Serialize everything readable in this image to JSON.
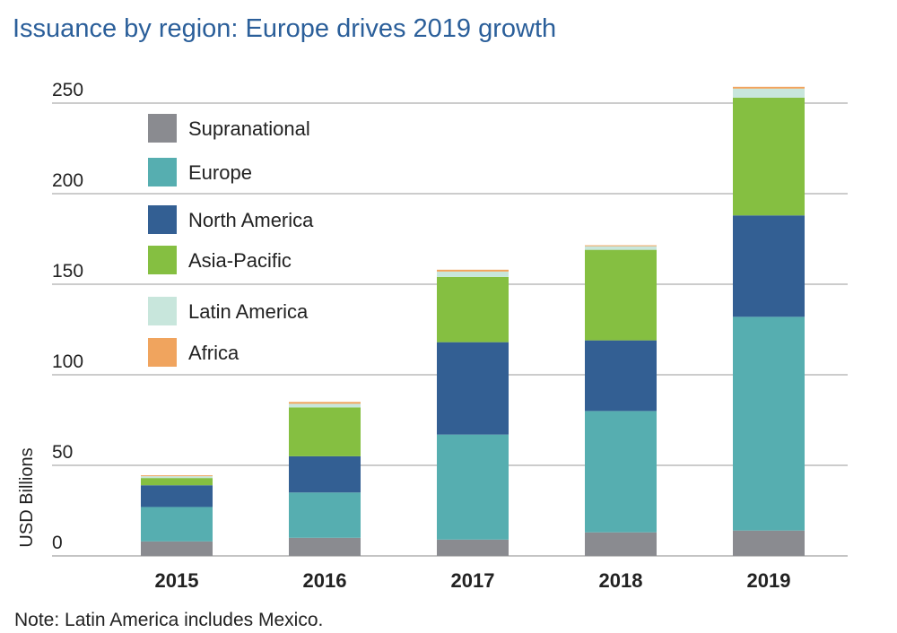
{
  "title": "Issuance by region: Europe drives 2019 growth",
  "note": "Note: Latin America includes Mexico.",
  "chart_data": {
    "type": "bar",
    "stacked": true,
    "categories": [
      "2015",
      "2016",
      "2017",
      "2018",
      "2019"
    ],
    "ylabel": "USD Billions",
    "ylim": [
      0,
      250
    ],
    "yticks": [
      0,
      50,
      100,
      150,
      200,
      250
    ],
    "grid": true,
    "legend_position": "top-left",
    "series": [
      {
        "name": "Supranational",
        "color": "#8a8b90",
        "values": [
          8,
          10,
          9,
          13,
          14
        ]
      },
      {
        "name": "Europe",
        "color": "#56aeb0",
        "values": [
          19,
          25,
          58,
          67,
          118
        ]
      },
      {
        "name": "North America",
        "color": "#335f93",
        "values": [
          12,
          20,
          51,
          39,
          56
        ]
      },
      {
        "name": "Asia-Pacific",
        "color": "#85bf41",
        "values": [
          4,
          27,
          36,
          50,
          65
        ]
      },
      {
        "name": "Latin America",
        "color": "#c8e6dc",
        "values": [
          1,
          2,
          3,
          2,
          5
        ]
      },
      {
        "name": "Africa",
        "color": "#f0a45e",
        "values": [
          0.5,
          1,
          1,
          0.5,
          1
        ]
      }
    ]
  }
}
